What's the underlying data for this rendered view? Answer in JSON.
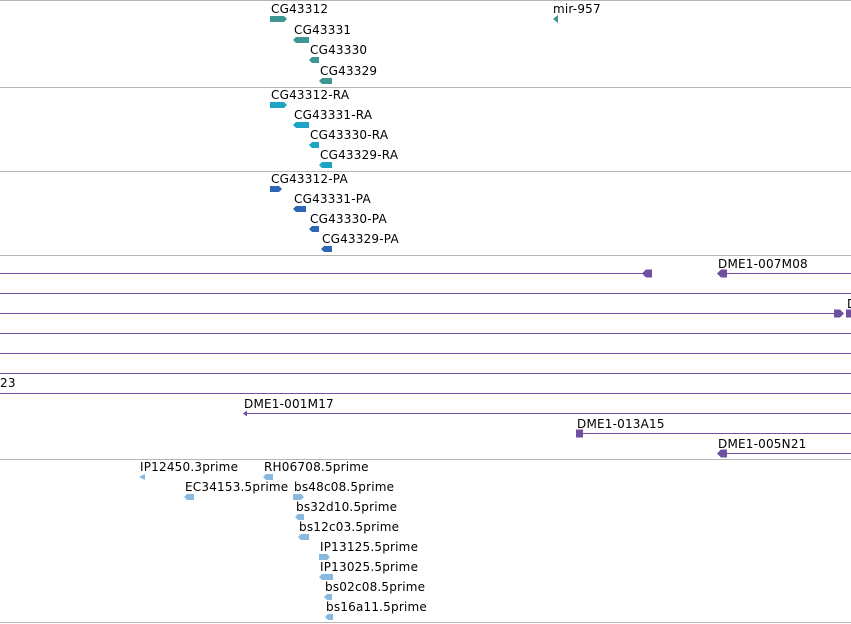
{
  "colors": {
    "gene": "#3f9592",
    "transcript": "#1da3c4",
    "protein": "#2f67b7",
    "clone": "#6e4fa0",
    "est": "#88b9de",
    "separator": "#b5b5b5"
  },
  "tracks": {
    "genes": [
      {
        "label": "CG43312"
      },
      {
        "label": "mir-957"
      },
      {
        "label": "CG43331"
      },
      {
        "label": "CG43330"
      },
      {
        "label": "CG43329"
      }
    ],
    "transcripts": [
      {
        "label": "CG43312-RA"
      },
      {
        "label": "CG43331-RA"
      },
      {
        "label": "CG43330-RA"
      },
      {
        "label": "CG43329-RA"
      }
    ],
    "proteins": [
      {
        "label": "CG43312-PA"
      },
      {
        "label": "CG43331-PA"
      },
      {
        "label": "CG43330-PA"
      },
      {
        "label": "CG43329-PA"
      }
    ],
    "clones": [
      {
        "label": "DME1-007M08"
      },
      {
        "label": "D"
      },
      {
        "label": "23"
      },
      {
        "label": "DME1-001M17"
      },
      {
        "label": "DME1-013A15"
      },
      {
        "label": "DME1-005N21"
      }
    ],
    "ests": [
      {
        "label": "IP12450.3prime"
      },
      {
        "label": "RH06708.5prime"
      },
      {
        "label": "EC34153.5prime"
      },
      {
        "label": "bs48c08.5prime"
      },
      {
        "label": "bs32d10.5prime"
      },
      {
        "label": "bs12c03.5prime"
      },
      {
        "label": "IP13125.5prime"
      },
      {
        "label": "IP13025.5prime"
      },
      {
        "label": "bs02c08.5prime"
      },
      {
        "label": "bs16a11.5prime"
      }
    ]
  }
}
